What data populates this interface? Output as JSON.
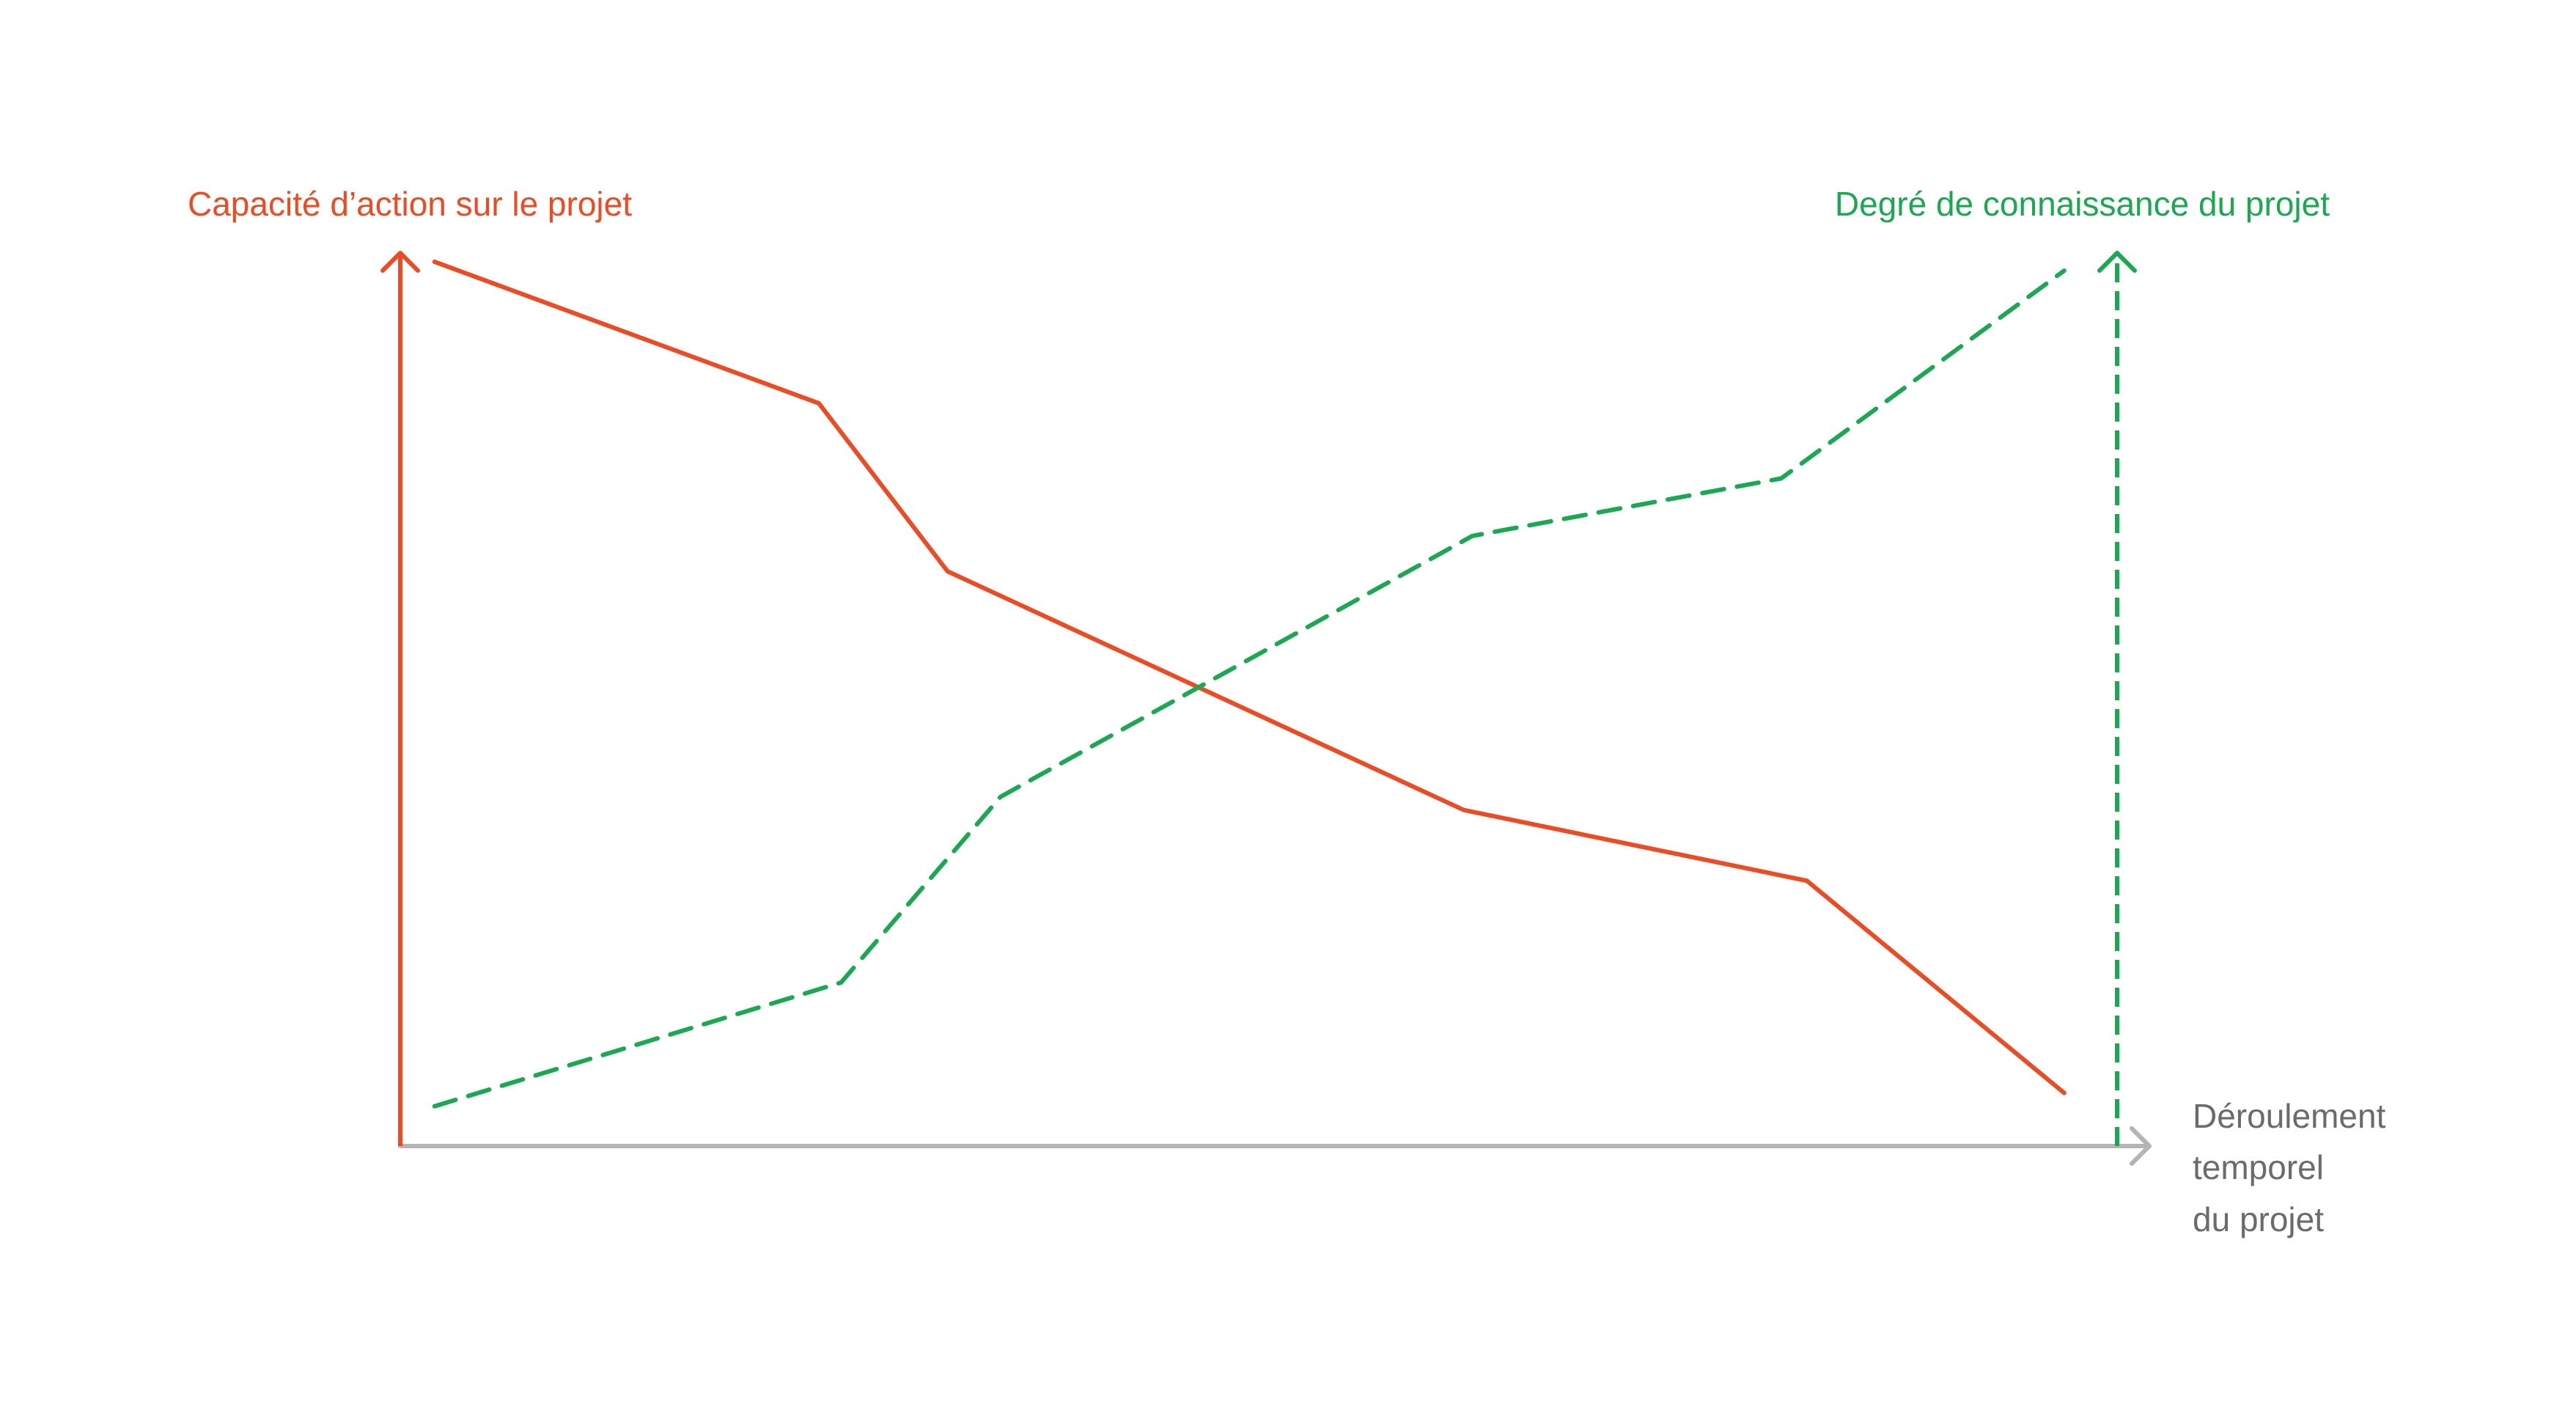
{
  "chart_data": {
    "type": "line",
    "title": "",
    "x_axis": {
      "label_lines": [
        "Déroulement",
        "temporel",
        "du projet"
      ],
      "range": [
        0,
        100
      ],
      "color": "#b4b4b4"
    },
    "y_left_axis": {
      "label": "Capacité d’action sur le projet",
      "range": [
        0,
        100
      ],
      "color": "#ec4b23"
    },
    "y_right_axis": {
      "label": "Degré de connaissance du projet",
      "range": [
        0,
        100
      ],
      "color": "#1aa852"
    },
    "grid": false,
    "series": [
      {
        "axis": "left",
        "style": "solid",
        "color": "#ec4b23",
        "x": [
          2,
          24.4,
          31.9,
          62,
          82,
          97
        ],
        "y": [
          100,
          84,
          65,
          38,
          30,
          6
        ]
      },
      {
        "axis": "right",
        "style": "dashed",
        "color": "#1aa852",
        "x": [
          2,
          25.7,
          35,
          62.5,
          80.5,
          97
        ],
        "y": [
          4.5,
          18.5,
          39.5,
          69,
          75.5,
          99
        ]
      }
    ]
  }
}
